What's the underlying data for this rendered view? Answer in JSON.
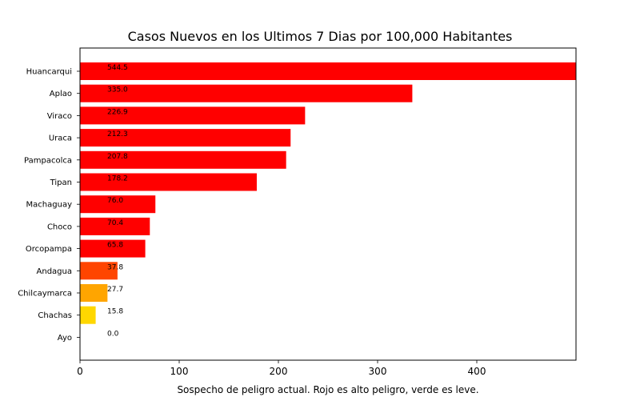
{
  "chart_data": {
    "type": "bar",
    "orientation": "horizontal",
    "title": "Casos Nuevos en los Ultimos 7 Dias por 100,000 Habitantes",
    "xlabel": "Sospecho de peligro actual. Rojo es alto peligro, verde es leve.",
    "ylabel": "",
    "xlim": [
      0,
      500
    ],
    "xticks": [
      "0",
      "100",
      "200",
      "300",
      "400"
    ],
    "grid": false,
    "categories": [
      "Huancarqui",
      "Aplao",
      "Viraco",
      "Uraca",
      "Pampacolca",
      "Tipan",
      "Machaguay",
      "Choco",
      "Orcopampa",
      "Andagua",
      "Chilcaymarca",
      "Chachas",
      "Ayo"
    ],
    "values": [
      544.5,
      335.0,
      226.9,
      212.3,
      207.8,
      178.2,
      76.0,
      70.4,
      65.8,
      37.8,
      27.7,
      15.8,
      0.0
    ],
    "value_labels": [
      "544.5",
      "335.0",
      "226.9",
      "212.3",
      "207.8",
      "178.2",
      "76.0",
      "70.4",
      "65.8",
      "37.8",
      "27.7",
      "15.8",
      "0.0"
    ],
    "colors": [
      "#ff0000",
      "#ff0000",
      "#ff0000",
      "#ff0000",
      "#ff0000",
      "#ff0000",
      "#ff0000",
      "#ff0000",
      "#ff0000",
      "#ff4500",
      "#ffa500",
      "#ffd700",
      "#ffffff"
    ]
  }
}
